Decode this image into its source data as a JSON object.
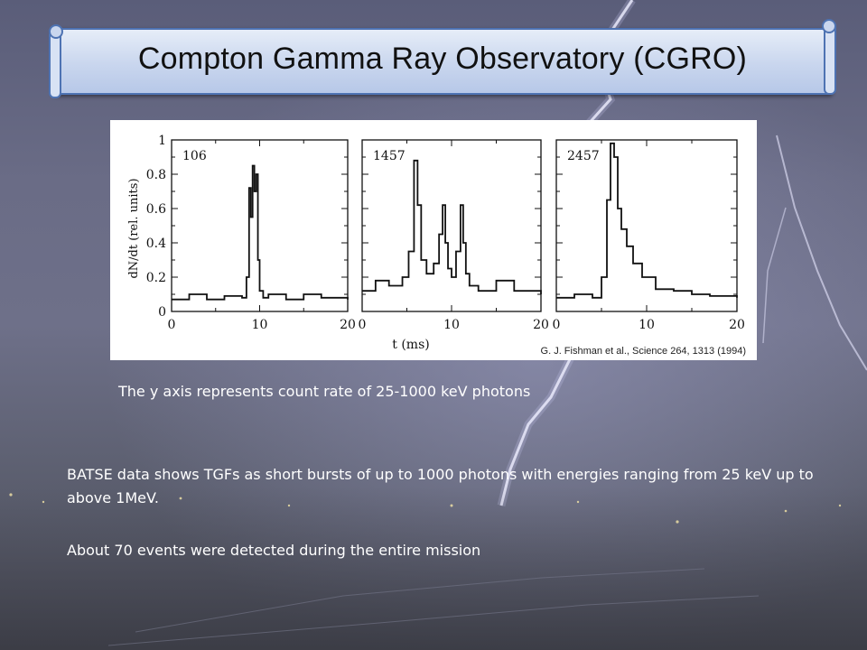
{
  "slide": {
    "title": "Compton Gamma Ray Observatory (CGRO)",
    "image_credit": "G. J. Fishman et al., Science 264, 1313 (1994)",
    "caption": "The y axis represents count rate of 25-1000 keV photons",
    "paragraph_1": "BATSE data shows TGFs as short bursts of up to 1000 photons with energies ranging from 25 keV up to above 1MeV.",
    "paragraph_2": "About 70 events were detected during the entire mission"
  },
  "chart_data": {
    "type": "line",
    "ylabel": "dN/dt (rel. units)",
    "xlabel": "t (ms)",
    "xlim": [
      0,
      20
    ],
    "ylim": [
      0,
      1.0
    ],
    "x_ticks": [
      "0",
      "10",
      "20"
    ],
    "y_ticks": [
      "0",
      "0.2",
      "0.4",
      "0.6",
      "0.8",
      "1"
    ],
    "grid": false,
    "panels": [
      {
        "name": "106",
        "x": [
          0,
          2,
          4,
          6,
          8,
          8.5,
          8.8,
          9.0,
          9.2,
          9.4,
          9.6,
          9.8,
          10.0,
          10.4,
          11,
          13,
          15,
          17,
          20
        ],
        "values": [
          0.07,
          0.1,
          0.07,
          0.09,
          0.08,
          0.2,
          0.72,
          0.55,
          0.85,
          0.7,
          0.8,
          0.3,
          0.12,
          0.08,
          0.1,
          0.07,
          0.1,
          0.08,
          0.07
        ]
      },
      {
        "name": "1457",
        "x": [
          0,
          1.5,
          3,
          4.5,
          5.2,
          5.8,
          6.2,
          6.6,
          7.2,
          8,
          8.6,
          9.0,
          9.3,
          9.6,
          10.0,
          10.5,
          11.0,
          11.3,
          11.6,
          12.0,
          13,
          15,
          17,
          20
        ],
        "values": [
          0.12,
          0.18,
          0.15,
          0.2,
          0.35,
          0.88,
          0.62,
          0.3,
          0.22,
          0.28,
          0.45,
          0.62,
          0.4,
          0.25,
          0.2,
          0.35,
          0.62,
          0.4,
          0.22,
          0.15,
          0.12,
          0.18,
          0.12,
          0.1
        ]
      },
      {
        "name": "2457",
        "x": [
          0,
          2,
          4,
          5,
          5.6,
          6.0,
          6.4,
          6.8,
          7.2,
          7.8,
          8.5,
          9.5,
          11,
          13,
          15,
          17,
          20
        ],
        "values": [
          0.08,
          0.1,
          0.08,
          0.2,
          0.65,
          0.98,
          0.9,
          0.6,
          0.48,
          0.38,
          0.28,
          0.2,
          0.13,
          0.12,
          0.1,
          0.09,
          0.08
        ]
      }
    ]
  }
}
